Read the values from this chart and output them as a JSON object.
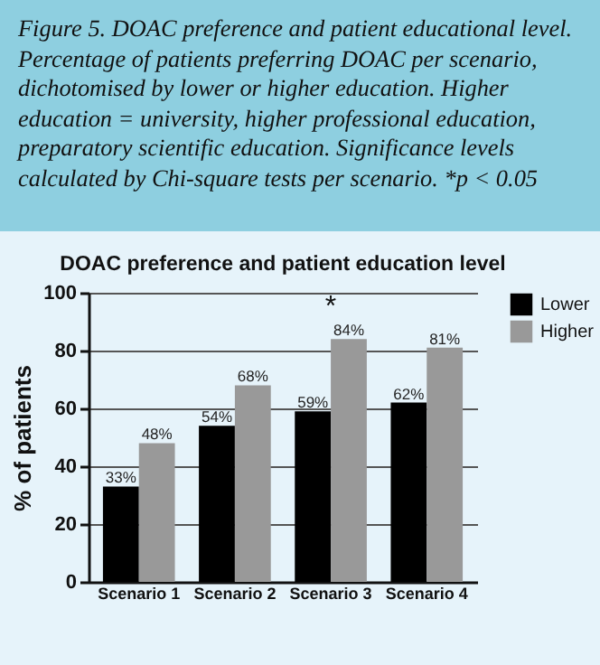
{
  "chart_data": {
    "type": "bar",
    "title": "DOAC preference and patient education level",
    "ylabel": "% of patients",
    "annotations": [
      "Figure 5. DOAC preference and patient educational level. Percentage of patients preferring DOAC per scenario, dichotomised by lower or higher education. Higher education = university, higher professional education, preparatory scientific education. Significance levels calculated by Chi-square tests per scenario. *p < 0.05",
      {
        "text": "*",
        "x": "Scenario 3",
        "y": 84
      }
    ],
    "categories": [
      "Scenario 1",
      "Scenario 2",
      "Scenario 3",
      "Scenario 4"
    ],
    "series": [
      {
        "name": "Lower",
        "color": "#000000",
        "values": [
          33,
          54,
          59,
          62
        ],
        "value_labels": [
          "33%",
          "54%",
          "59%",
          "62%"
        ]
      },
      {
        "name": "Higher",
        "color": "#999999",
        "values": [
          48,
          68,
          84,
          81
        ],
        "value_labels": [
          "48%",
          "68%",
          "84%",
          "81%"
        ]
      }
    ],
    "ylim": [
      0,
      100
    ],
    "yticks": [
      0,
      20,
      40,
      60,
      80,
      100
    ],
    "grid": "y",
    "legend": "top right"
  }
}
